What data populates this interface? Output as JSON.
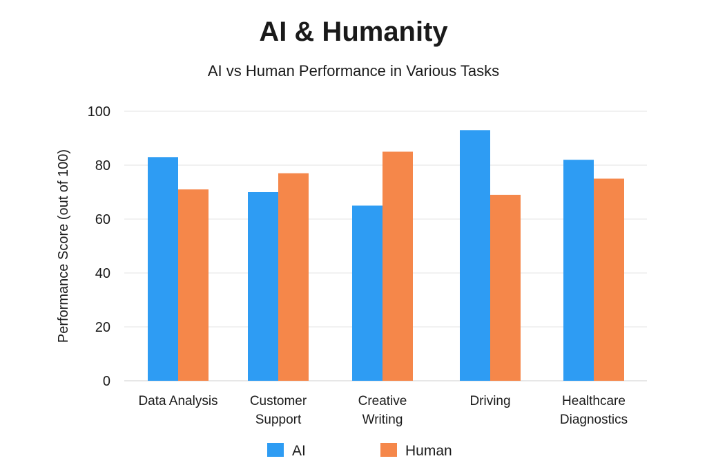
{
  "chart_data": {
    "type": "bar",
    "title": "AI & Humanity",
    "subtitle": "AI vs Human Performance in Various Tasks",
    "xlabel": "",
    "ylabel": "Performance Score (out of 100)",
    "ylim": [
      0,
      100
    ],
    "yticks": [
      0,
      20,
      40,
      60,
      80,
      100
    ],
    "grid": true,
    "legend_position": "bottom",
    "categories": [
      [
        "Data Analysis"
      ],
      [
        "Customer",
        "Support"
      ],
      [
        "Creative",
        "Writing"
      ],
      [
        "Driving"
      ],
      [
        "Healthcare",
        "Diagnostics"
      ]
    ],
    "series": [
      {
        "name": "AI",
        "color": "#2e9cf3",
        "values": [
          83,
          70,
          65,
          93,
          82
        ]
      },
      {
        "name": "Human",
        "color": "#f5874a",
        "values": [
          71,
          77,
          85,
          69,
          75
        ]
      }
    ]
  }
}
